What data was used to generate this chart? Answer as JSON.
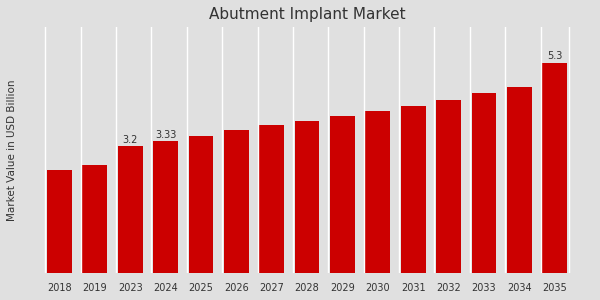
{
  "title": "Abutment Implant Market",
  "ylabel": "Market Value in USD Billion",
  "categories": [
    "2018",
    "2019",
    "2023",
    "2024",
    "2025",
    "2026",
    "2027",
    "2028",
    "2029",
    "2030",
    "2031",
    "2032",
    "2033",
    "2034",
    "2035"
  ],
  "values": [
    2.6,
    2.72,
    3.2,
    3.33,
    3.46,
    3.62,
    3.74,
    3.83,
    3.96,
    4.08,
    4.22,
    4.38,
    4.55,
    4.7,
    5.3
  ],
  "bar_color": "#cc0000",
  "background_color": "#e0e0e0",
  "title_fontsize": 11,
  "ylabel_fontsize": 7.5,
  "tick_fontsize": 7,
  "annotate_indices": [
    2,
    3,
    14
  ],
  "annotate_values": [
    "3.2",
    "3.33",
    "5.3"
  ],
  "ylim_min": 0,
  "ylim_max": 6.2
}
